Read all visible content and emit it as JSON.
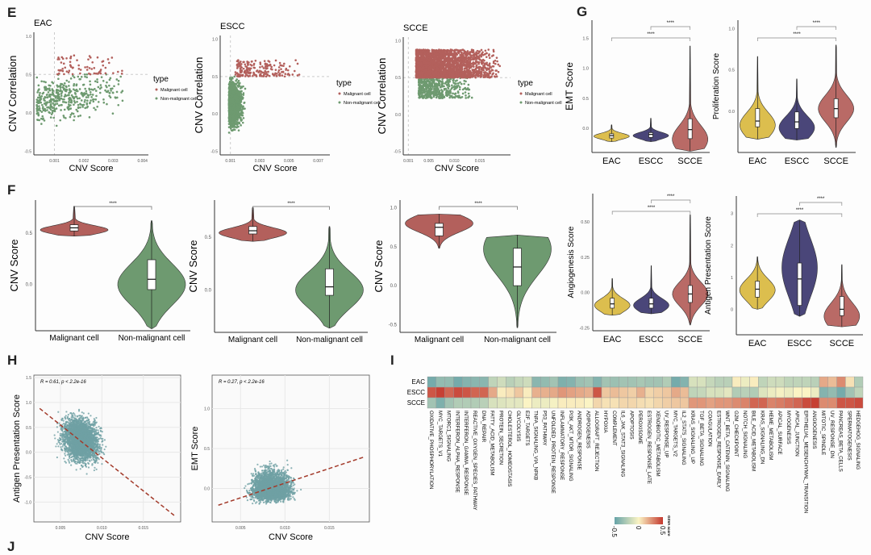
{
  "panels": {
    "E": "E",
    "F": "F",
    "G": "G",
    "H": "H",
    "I": "I",
    "J": "J"
  },
  "colors": {
    "malignant": "#b3605c",
    "nonmalignant": "#6e9a70",
    "EAC": "#dcbe4e",
    "ESCC": "#4a4679",
    "SCCE": "#b96a66",
    "scatter_teal": "#6fa0a4",
    "regline": "#a33a2a",
    "heat_low": "#66a3a8",
    "heat_mid": "#fbf4c4",
    "heat_high": "#c4382e"
  },
  "chart_data": [
    {
      "id": "E-EAC",
      "type": "scatter",
      "title": "EAC",
      "xlabel": "CNV Score",
      "ylabel": "CNV Correlation",
      "xlim": [
        0.0003,
        0.0042
      ],
      "ylim": [
        -0.55,
        1.05
      ],
      "xticks": [
        0.001,
        0.002,
        0.003,
        0.004
      ],
      "xtick_labels": [
        "0.001",
        "0.002",
        "0.003",
        "0.004"
      ],
      "yticks": [
        -0.5,
        0.0,
        0.5,
        1.0
      ],
      "ytick_labels": [
        "-0.5",
        "0.0",
        "0.5",
        "1.0"
      ],
      "vline": 0.001,
      "hline": 0.5,
      "legend": {
        "title": "type",
        "entries": [
          "Malignant cell",
          "Non-malignant cell"
        ],
        "placement": "right"
      },
      "cloud": {
        "malignant": {
          "x": [
            0.0011,
            0.0041
          ],
          "y": [
            0.5,
            0.75
          ],
          "n": 70
        },
        "nonmalignant": {
          "x": [
            0.0004,
            0.0035
          ],
          "y": [
            -0.22,
            0.5
          ],
          "n": 420
        }
      }
    },
    {
      "id": "E-ESCC",
      "type": "scatter",
      "title": "ESCC",
      "xlabel": "CNV Score",
      "ylabel": "CNV Correlation",
      "xlim": [
        0.0003,
        0.0078
      ],
      "ylim": [
        -0.55,
        1.05
      ],
      "xticks": [
        0.001,
        0.003,
        0.005,
        0.007
      ],
      "xtick_labels": [
        "0.001",
        "0.003",
        "0.005",
        "0.007"
      ],
      "yticks": [
        -0.5,
        0.0,
        0.5,
        1.0
      ],
      "ytick_labels": [
        "-0.5",
        "0.0",
        "0.5",
        "1.0"
      ],
      "vline": 0.001,
      "hline": 0.5,
      "legend": {
        "title": "type",
        "entries": [
          "Malignant cell",
          "Non-malignant cell"
        ],
        "placement": "right"
      },
      "cloud": {
        "malignant": {
          "x": [
            0.0013,
            0.006
          ],
          "y": [
            0.5,
            0.72
          ],
          "n": 200
        },
        "nonmalignant": {
          "x": [
            0.0007,
            0.0072
          ],
          "y": [
            -0.32,
            0.5
          ],
          "n": 1400
        }
      }
    },
    {
      "id": "E-SCCE",
      "type": "scatter",
      "title": "SCCE",
      "xlabel": "CNV Score",
      "ylabel": "CNV Correlation",
      "xlim": [
        0.0,
        0.021
      ],
      "ylim": [
        -0.55,
        1.05
      ],
      "xticks": [
        0.001,
        0.005,
        0.01,
        0.015
      ],
      "xtick_labels": [
        "0.001",
        "0.005",
        "0.010",
        "0.015"
      ],
      "yticks": [
        -0.5,
        0.0,
        0.5,
        1.0
      ],
      "ytick_labels": [
        "-0.5",
        "0.0",
        "0.5",
        "1.0"
      ],
      "vline": 0.001,
      "hline": 0.5,
      "legend": {
        "title": "type",
        "entries": [
          "Malignant cell",
          "Non-malignant cell"
        ],
        "placement": "right"
      },
      "cloud": {
        "malignant": {
          "x": [
            0.0025,
            0.019
          ],
          "y": [
            0.5,
            0.88
          ],
          "n": 2500
        },
        "nonmalignant": {
          "x": [
            0.003,
            0.014
          ],
          "y": [
            0.22,
            0.5
          ],
          "n": 500
        }
      }
    },
    {
      "id": "F-EAC",
      "type": "violin",
      "ylabel": "CNV Score",
      "categories": [
        "Malignant cell",
        "Non-malignant cell"
      ],
      "ylim": [
        -0.45,
        0.82
      ],
      "yticks": [
        0.0,
        0.5
      ],
      "ytick_labels": [
        "0.0",
        "0.5"
      ],
      "series": [
        {
          "name": "Malignant cell",
          "min": 0.47,
          "q1": 0.52,
          "median": 0.55,
          "q3": 0.58,
          "max": 0.76,
          "mode": 0.53,
          "color": "malignant"
        },
        {
          "name": "Non-malignant cell",
          "min": -0.43,
          "q1": -0.05,
          "median": 0.05,
          "q3": 0.24,
          "max": 0.62,
          "mode": 0.0,
          "color": "nonmalignant"
        }
      ],
      "significance": [
        "****"
      ]
    },
    {
      "id": "F-ESCC",
      "type": "violin",
      "ylabel": "CNV Score",
      "categories": [
        "Malignant cell",
        "Non-malignant cell"
      ],
      "ylim": [
        -0.4,
        0.85
      ],
      "yticks": [
        0.0,
        0.5
      ],
      "ytick_labels": [
        "0.0",
        "0.5"
      ],
      "series": [
        {
          "name": "Malignant cell",
          "min": 0.46,
          "q1": 0.53,
          "median": 0.56,
          "q3": 0.6,
          "max": 0.78,
          "mode": 0.54,
          "color": "malignant"
        },
        {
          "name": "Non-malignant cell",
          "min": -0.36,
          "q1": -0.05,
          "median": 0.03,
          "q3": 0.2,
          "max": 0.6,
          "mode": 0.0,
          "color": "nonmalignant"
        }
      ],
      "significance": [
        "****"
      ]
    },
    {
      "id": "F-SCCE",
      "type": "violin",
      "ylabel": "CNV Score",
      "categories": [
        "Malignant cell",
        "Non-malignant cell"
      ],
      "ylim": [
        -0.6,
        1.1
      ],
      "yticks": [
        -0.5,
        0.0,
        0.5,
        1.0
      ],
      "ytick_labels": [
        "-0.5",
        "0.0",
        "0.5",
        "1.0"
      ],
      "series": [
        {
          "name": "Malignant cell",
          "min": 0.48,
          "q1": 0.64,
          "median": 0.75,
          "q3": 0.8,
          "max": 0.92,
          "mode": 0.8,
          "color": "malignant"
        },
        {
          "name": "Non-malignant cell",
          "min": -0.54,
          "q1": 0.0,
          "median": 0.24,
          "q3": 0.48,
          "max": 0.65,
          "mode": 0.47,
          "color": "nonmalignant"
        }
      ],
      "significance": [
        "****"
      ]
    },
    {
      "id": "G-EMT",
      "type": "violin",
      "ylabel": "EMT Score",
      "categories": [
        "EAC",
        "ESCC",
        "SCCE"
      ],
      "ylim": [
        -0.4,
        1.8
      ],
      "yticks": [
        0.0,
        0.5,
        1.0,
        1.5
      ],
      "ytick_labels": [
        "0.0",
        "0.5",
        "1.0",
        "1.5"
      ],
      "series": [
        {
          "name": "EAC",
          "min": -0.22,
          "q1": -0.16,
          "median": -0.12,
          "q3": -0.09,
          "max": 0.06,
          "mode": -0.13,
          "color": "EAC"
        },
        {
          "name": "ESCC",
          "min": -0.22,
          "q1": -0.15,
          "median": -0.1,
          "q3": -0.07,
          "max": 0.17,
          "mode": -0.12,
          "color": "ESCC"
        },
        {
          "name": "SCCE",
          "min": -0.38,
          "q1": -0.17,
          "median": -0.02,
          "q3": 0.16,
          "max": 1.37,
          "mode": -0.18,
          "color": "SCCE"
        }
      ],
      "significance": [
        "****",
        "****"
      ]
    },
    {
      "id": "G-Prolif",
      "type": "violin",
      "ylabel": "Proliferation Score",
      "categories": [
        "EAC",
        "ESCC",
        "SCCE"
      ],
      "ylim": [
        -0.5,
        1.1
      ],
      "yticks": [
        0.0,
        0.5,
        1.0
      ],
      "ytick_labels": [
        "0.0",
        "0.5",
        "1.0"
      ],
      "series": [
        {
          "name": "EAC",
          "min": -0.34,
          "q1": -0.19,
          "median": -0.12,
          "q3": 0.03,
          "max": 0.66,
          "mode": -0.17,
          "color": "EAC"
        },
        {
          "name": "ESCC",
          "min": -0.35,
          "q1": -0.21,
          "median": -0.13,
          "q3": -0.01,
          "max": 0.39,
          "mode": -0.2,
          "color": "ESCC"
        },
        {
          "name": "SCCE",
          "min": -0.44,
          "q1": -0.08,
          "median": 0.03,
          "q3": 0.15,
          "max": 0.8,
          "mode": 0.03,
          "color": "SCCE"
        }
      ],
      "significance": [
        "****",
        "****"
      ]
    },
    {
      "id": "G-Angio",
      "type": "violin",
      "ylabel": "Angiogenesis Score",
      "categories": [
        "EAC",
        "ESCC",
        "SCCE"
      ],
      "ylim": [
        -0.27,
        0.7
      ],
      "yticks": [
        -0.25,
        0.0,
        0.25,
        0.5
      ],
      "ytick_labels": [
        "-0.25",
        "0.00",
        "0.25",
        "0.50"
      ],
      "series": [
        {
          "name": "EAC",
          "min": -0.16,
          "q1": -0.11,
          "median": -0.08,
          "q3": -0.04,
          "max": 0.1,
          "mode": -0.09,
          "color": "EAC"
        },
        {
          "name": "ESCC",
          "min": -0.15,
          "q1": -0.11,
          "median": -0.08,
          "q3": -0.04,
          "max": 0.19,
          "mode": -0.09,
          "color": "ESCC"
        },
        {
          "name": "SCCE",
          "min": -0.23,
          "q1": -0.07,
          "median": -0.01,
          "q3": 0.05,
          "max": 0.55,
          "mode": -0.01,
          "color": "SCCE"
        }
      ],
      "significance": [
        "****",
        "****"
      ]
    },
    {
      "id": "G-Antigen",
      "type": "violin",
      "ylabel": "Antigen Presentation Score",
      "categories": [
        "EAC",
        "ESCC",
        "SCCE"
      ],
      "ylim": [
        -0.8,
        3.55
      ],
      "yticks": [
        0,
        1,
        2,
        3
      ],
      "ytick_labels": [
        "0",
        "1",
        "2",
        "3"
      ],
      "series": [
        {
          "name": "EAC",
          "min": 0.0,
          "q1": 0.38,
          "median": 0.63,
          "q3": 0.88,
          "max": 1.65,
          "mode": 0.6,
          "color": "EAC"
        },
        {
          "name": "ESCC",
          "min": -0.22,
          "q1": 0.12,
          "median": 0.95,
          "q3": 1.45,
          "max": 2.8,
          "mode": 1.3,
          "color": "ESCC"
        },
        {
          "name": "SCCE",
          "min": -0.55,
          "q1": -0.2,
          "median": 0.0,
          "q3": 0.4,
          "max": 1.4,
          "mode": -0.22,
          "color": "SCCE"
        }
      ],
      "significance": [
        "****",
        "****"
      ]
    },
    {
      "id": "H-Antigen",
      "type": "scatter",
      "xlabel": "CNV Score",
      "ylabel": "Antigen Presentation Score",
      "annotation": "R = 0.61, p < 2.2e-16",
      "xlim": [
        0.0018,
        0.0195
      ],
      "ylim": [
        -1.4,
        1.55
      ],
      "xticks": [
        0.005,
        0.01,
        0.015
      ],
      "xtick_labels": [
        "0.005",
        "0.010",
        "0.015"
      ],
      "yticks": [
        -1.0,
        -0.5,
        0.0,
        0.5,
        1.0,
        1.5
      ],
      "ytick_labels": [
        "-1.0",
        "-0.5",
        "0.0",
        "0.5",
        "1.0",
        "1.5"
      ],
      "regression": {
        "x": [
          0.0025,
          0.0188
        ],
        "y": [
          0.88,
          -1.28
        ]
      },
      "cloud": {
        "x": [
          0.003,
          0.015
        ],
        "y": [
          -0.55,
          1.3
        ],
        "n": 3200
      }
    },
    {
      "id": "H-EMT",
      "type": "scatter",
      "xlabel": "CNV Score",
      "ylabel": "EMT Score",
      "annotation": "R = 0.27, p < 2.2e-16",
      "xlim": [
        0.0018,
        0.0195
      ],
      "ylim": [
        -0.42,
        1.42
      ],
      "xticks": [
        0.005,
        0.01,
        0.015
      ],
      "xtick_labels": [
        "0.005",
        "0.010",
        "0.015"
      ],
      "yticks": [
        0.0,
        0.5,
        1.0
      ],
      "ytick_labels": [
        "0.0",
        "0.5",
        "1.0"
      ],
      "regression": {
        "x": [
          0.0025,
          0.0188
        ],
        "y": [
          -0.21,
          0.39
        ]
      },
      "cloud": {
        "x": [
          0.003,
          0.016
        ],
        "y": [
          -0.38,
          1.2
        ],
        "n": 3200
      }
    },
    {
      "id": "I-heatmap",
      "type": "heatmap",
      "rows": [
        "EAC",
        "ESCC",
        "SCCE"
      ],
      "legend": {
        "title": "GSVA score",
        "ticks": [
          "-0.5",
          "0",
          "0.5"
        ],
        "range": [
          -0.5,
          0.5
        ]
      },
      "columns": [
        "OXIDATIVE_PHOSPHORYLATION",
        "MYC_TARGETS_V1",
        "MTORC1_SIGNALING",
        "INTERFERON_ALPHA_RESPONSE",
        "INTERFERON_GAMMA_RESPONSE",
        "REACTIVE_OXYGEN_SPECIES_PATHWAY",
        "DNA_REPAIR",
        "FATTY_ACID_METABOLISM",
        "PROTEIN_SECRETION",
        "CHOLESTEROL_HOMEOSTASIS",
        "GLYCOLYSIS",
        "E2F_TARGETS",
        "TNFA_SIGNALING_VIA_NFKB",
        "P53_PATHWAY",
        "UNFOLDED_PROTEIN_RESPONSE",
        "INFLAMMATORY_RESPONSE",
        "PI3K_AKT_MTOR_SIGNALING",
        "ANDROGEN_RESPONSE",
        "ADIPOGENESIS",
        "ALLOGRAFT_REJECTION",
        "HYPOXIA",
        "COMPLEMENT",
        "IL6_JAK_STAT3_SIGNALING",
        "APOPTOSIS",
        "PEROXISOME",
        "ESTROGEN_RESPONSE_LATE",
        "XENOBIOTIC_METABOLISM",
        "UV_RESPONSE_UP",
        "MYC_TARGETS_V2",
        "IL2_STAT5_SIGNALING",
        "KRAS_SIGNALING_UP",
        "TGF_BETA_SIGNALING",
        "COAGULATION",
        "ESTROGEN_RESPONSE_EARLY",
        "WNT_BETA_CATENIN_SIGNALING",
        "G2M_CHECKPOINT",
        "NOTCH_SIGNALING",
        "BILE_ACID_METABOLISM",
        "KRAS_SIGNALING_DN",
        "HEME_METABOLISM",
        "APICAL_SURFACE",
        "MYOGENESIS",
        "APICAL_JUNCTION",
        "EPITHELIAL_MESENCHYMAL_TRANSITION",
        "ANGIOGENESIS",
        "MITOTIC_SPINDLE",
        "UV_RESPONSE_DN",
        "PANCREAS_BETA_CELLS",
        "SPERMATOGENESIS",
        "HEDGEHOG_SIGNALING"
      ],
      "values": [
        [
          -0.45,
          -0.35,
          -0.35,
          -0.45,
          -0.4,
          -0.38,
          -0.38,
          -0.2,
          -0.15,
          -0.22,
          -0.18,
          -0.15,
          -0.38,
          -0.35,
          -0.3,
          -0.42,
          -0.4,
          -0.32,
          -0.3,
          -0.4,
          -0.3,
          -0.32,
          -0.3,
          -0.3,
          -0.28,
          -0.3,
          -0.3,
          -0.25,
          -0.45,
          -0.4,
          -0.12,
          -0.12,
          -0.18,
          -0.22,
          -0.22,
          0.02,
          -0.05,
          0.02,
          -0.2,
          -0.15,
          -0.15,
          -0.2,
          -0.2,
          -0.2,
          -0.22,
          0.2,
          0.15,
          0.28,
          0.05,
          -0.25
        ],
        [
          0.42,
          0.48,
          0.38,
          0.45,
          0.42,
          0.38,
          0.38,
          0.2,
          0.02,
          0.05,
          0.12,
          0.02,
          0.18,
          0.18,
          0.2,
          0.25,
          0.22,
          0.2,
          0.18,
          0.42,
          0.12,
          0.15,
          0.12,
          0.1,
          0.18,
          0.08,
          0.1,
          0.12,
          0.2,
          0.15,
          -0.2,
          -0.18,
          -0.12,
          -0.12,
          -0.08,
          -0.25,
          -0.22,
          -0.25,
          -0.1,
          -0.05,
          -0.02,
          -0.05,
          0.0,
          0.0,
          -0.05,
          -0.4,
          -0.35,
          -0.45,
          -0.3,
          -0.2
        ],
        [
          -0.3,
          -0.42,
          -0.3,
          -0.25,
          -0.25,
          -0.25,
          -0.22,
          -0.12,
          -0.1,
          -0.08,
          -0.08,
          0.0,
          -0.05,
          -0.05,
          -0.02,
          0.02,
          0.02,
          0.02,
          0.0,
          0.08,
          0.05,
          0.05,
          0.08,
          0.08,
          0.06,
          0.05,
          0.08,
          0.1,
          0.12,
          0.12,
          0.25,
          0.25,
          0.22,
          0.25,
          0.25,
          0.28,
          0.3,
          0.38,
          0.38,
          0.3,
          0.32,
          0.35,
          0.38,
          0.45,
          0.48,
          0.28,
          0.28,
          0.42,
          0.42,
          0.45
        ]
      ]
    }
  ]
}
